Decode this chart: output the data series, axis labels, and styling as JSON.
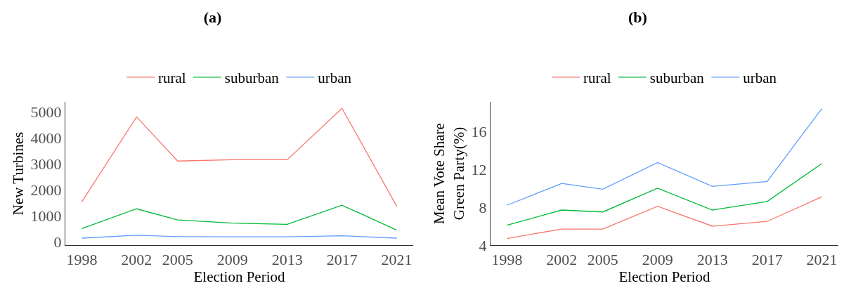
{
  "chart_data": [
    {
      "type": "line",
      "title": "(a)",
      "xlabel": "Election Period",
      "ylabel": "New Turbines",
      "legend": "top",
      "x": [
        1998,
        2002,
        2005,
        2009,
        2013,
        2017,
        2021
      ],
      "xlim": [
        1996.8,
        2022.2
      ],
      "xticks": [
        1998,
        2002,
        2005,
        2009,
        2013,
        2017,
        2021
      ],
      "ylim": [
        -120,
        5400
      ],
      "yticks": [
        0,
        1000,
        2000,
        3000,
        4000,
        5000
      ],
      "series": [
        {
          "name": "rural",
          "color": "#f8766d",
          "values": [
            1550,
            4820,
            3120,
            3170,
            3170,
            5150,
            1380
          ]
        },
        {
          "name": "suburban",
          "color": "#00ba38",
          "values": [
            520,
            1280,
            850,
            730,
            680,
            1420,
            460
          ]
        },
        {
          "name": "urban",
          "color": "#619cff",
          "values": [
            150,
            260,
            210,
            200,
            200,
            240,
            150
          ]
        }
      ]
    },
    {
      "type": "line",
      "title": "(b)",
      "xlabel": "Election Period",
      "ylabel": "Mean Vote Share\nGreen Party(%)",
      "legend": "top",
      "x": [
        1998,
        2002,
        2005,
        2009,
        2013,
        2017,
        2021
      ],
      "xlim": [
        1996.8,
        2022.2
      ],
      "xticks": [
        1998,
        2002,
        2005,
        2009,
        2013,
        2017,
        2021
      ],
      "ylim": [
        4.0,
        19.1
      ],
      "yticks": [
        4,
        8,
        12,
        16
      ],
      "series": [
        {
          "name": "rural",
          "color": "#f8766d",
          "values": [
            4.7,
            5.7,
            5.7,
            8.1,
            6.0,
            6.5,
            9.1
          ]
        },
        {
          "name": "suburban",
          "color": "#00ba38",
          "values": [
            6.1,
            7.7,
            7.5,
            10.0,
            7.7,
            8.6,
            12.6
          ]
        },
        {
          "name": "urban",
          "color": "#619cff",
          "values": [
            8.2,
            10.5,
            9.9,
            12.7,
            10.2,
            10.7,
            18.4
          ]
        }
      ]
    }
  ]
}
